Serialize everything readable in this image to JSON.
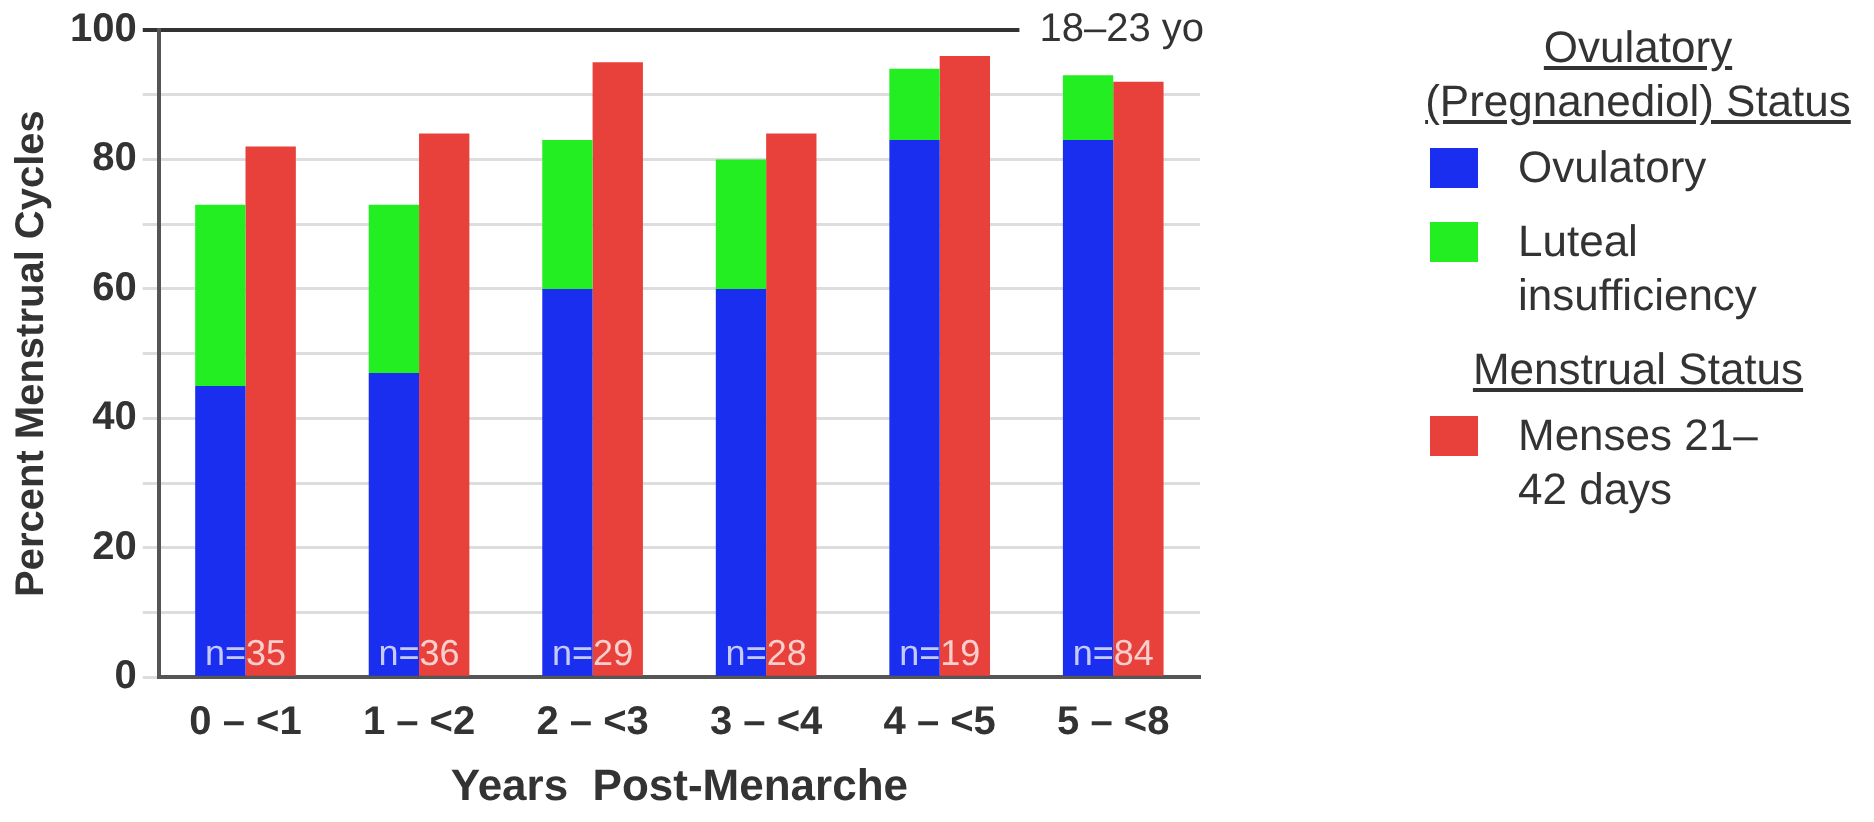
{
  "chart_data": {
    "type": "bar",
    "xlabel": "Years  Post-Menarche",
    "ylabel": "Percent Menstrual Cycles",
    "legend_title": "Ovulatory (Pregnanediol) Status",
    "categories": [
      "0 – <1",
      "1 – <2",
      "2 – <3",
      "3 – <4",
      "4 – <5",
      "5 – <8"
    ],
    "series": [
      {
        "name": "Ovulatory",
        "color": "#1a2ef0",
        "base": [
          0,
          0,
          0,
          0,
          0,
          0
        ],
        "values": [
          45,
          47,
          60,
          60,
          83,
          83
        ]
      },
      {
        "name": "Luteal insufficiency",
        "color": "#22ee22",
        "base": [
          45,
          47,
          60,
          60,
          83,
          83
        ],
        "values": [
          28,
          26,
          23,
          20,
          11,
          10
        ]
      },
      {
        "name": "Menses 21– 42 days",
        "color": "#e8403a",
        "values": [
          82,
          84,
          95,
          84,
          96,
          92
        ]
      }
    ],
    "ylim": [
      0,
      100
    ],
    "yticks": [
      0,
      {
        "value": 10,
        "label": null
      },
      20,
      {
        "value": 30,
        "label": null
      },
      40,
      {
        "value": 50,
        "label": null
      },
      60,
      {
        "value": 70,
        "label": null
      },
      80,
      {
        "value": 90,
        "label": null
      },
      100
    ],
    "grid": "y",
    "legend": "right",
    "annotations": [
      {
        "text": "n=35",
        "x": "0 – <1",
        "y": 0
      },
      {
        "text": "n=36",
        "x": "1 – <2",
        "y": 0
      },
      {
        "text": "n=29",
        "x": "2 – <3",
        "y": 0
      },
      {
        "text": "n=28",
        "x": "3 – <4",
        "y": 0
      },
      {
        "text": "n=19",
        "x": "4 – <5",
        "y": 0
      },
      {
        "text": "n=84",
        "x": "5 – <8",
        "y": 0
      },
      "Menstrual Status",
      "18–23 yo"
    ]
  }
}
